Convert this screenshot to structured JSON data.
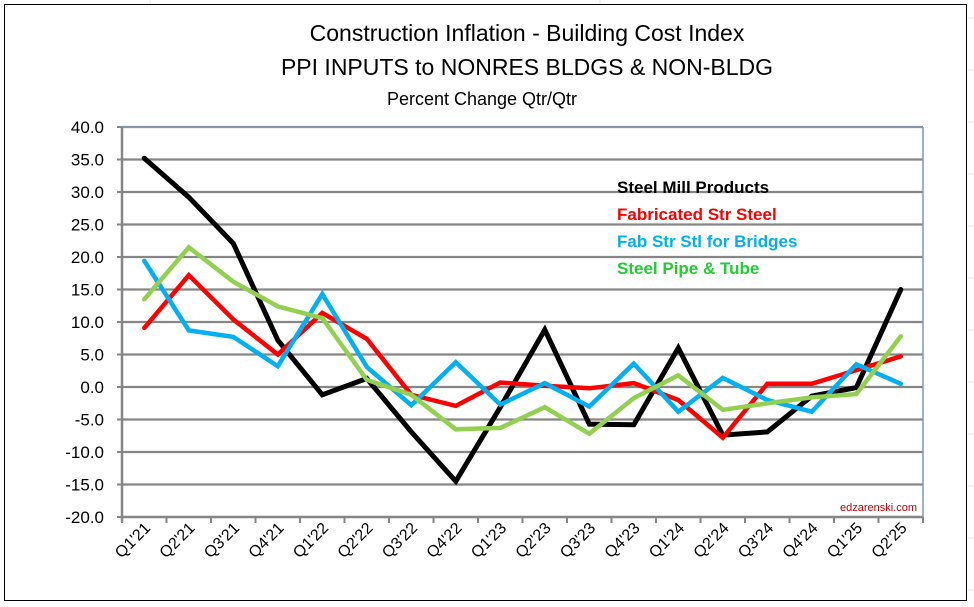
{
  "chart_data": {
    "type": "line",
    "title": "Construction Inflation - Building Cost Index",
    "subtitle_line2": "PPI INPUTS  to NONRES BLDGS & NON-BLDG",
    "subtitle": "Percent Change Qtr/Qtr",
    "xlabel": "",
    "ylabel": "",
    "ylim": [
      -20,
      40
    ],
    "ytick_step": 5,
    "ytick_labels": [
      "40.0",
      "35.0",
      "30.0",
      "25.0",
      "20.0",
      "15.0",
      "10.0",
      "5.0",
      "0.0",
      "-5.0",
      "-10.0",
      "-15.0",
      "-20.0"
    ],
    "grid": "horizontal",
    "legend_position": "top-right",
    "categories": [
      "Q1'21",
      "Q2'21",
      "Q3'21",
      "Q4'21",
      "Q1'22",
      "Q2'22",
      "Q3'22",
      "Q4'22",
      "Q1'23",
      "Q2'23",
      "Q3'23",
      "Q4'23",
      "Q1'24",
      "Q2'24",
      "Q3'24",
      "Q4'24",
      "Q1'25",
      "Q2'25"
    ],
    "series": [
      {
        "name": "Steel Mill Products",
        "color": "#000000",
        "legend_color": "#000000",
        "values": [
          35.2,
          29.2,
          22.1,
          7.2,
          -1.2,
          1.3,
          -6.9,
          -14.5,
          -3.1,
          8.8,
          -5.7,
          -5.8,
          6.0,
          -7.4,
          -6.9,
          -1.4,
          -0.1,
          15.0
        ]
      },
      {
        "name": "Fabricated Str Steel",
        "color": "#ff0000",
        "legend_color": "#ff0000",
        "values": [
          9.1,
          17.2,
          10.4,
          5.0,
          11.4,
          7.4,
          -1.2,
          -2.9,
          0.7,
          0.2,
          -0.2,
          0.6,
          -2.0,
          -7.8,
          0.5,
          0.5,
          2.6,
          4.7
        ]
      },
      {
        "name": "Fab Str Stl for Bridges",
        "color": "#00b0f0",
        "legend_color": "#00b0f0",
        "values": [
          19.4,
          8.7,
          7.7,
          3.2,
          14.3,
          3.1,
          -2.8,
          3.8,
          -2.7,
          0.6,
          -3.0,
          3.6,
          -3.8,
          1.4,
          -2.0,
          -3.8,
          3.5,
          0.5
        ]
      },
      {
        "name": "Steel Pipe & Tube",
        "color": "#92d050",
        "legend_color": "#22cc33",
        "values": [
          13.5,
          21.5,
          16.2,
          12.4,
          10.6,
          1.1,
          -1.2,
          -6.5,
          -6.3,
          -3.1,
          -7.2,
          -1.7,
          1.8,
          -3.5,
          -2.5,
          -1.6,
          -1.1,
          7.8
        ]
      }
    ],
    "watermark": "edzarenski.com"
  }
}
